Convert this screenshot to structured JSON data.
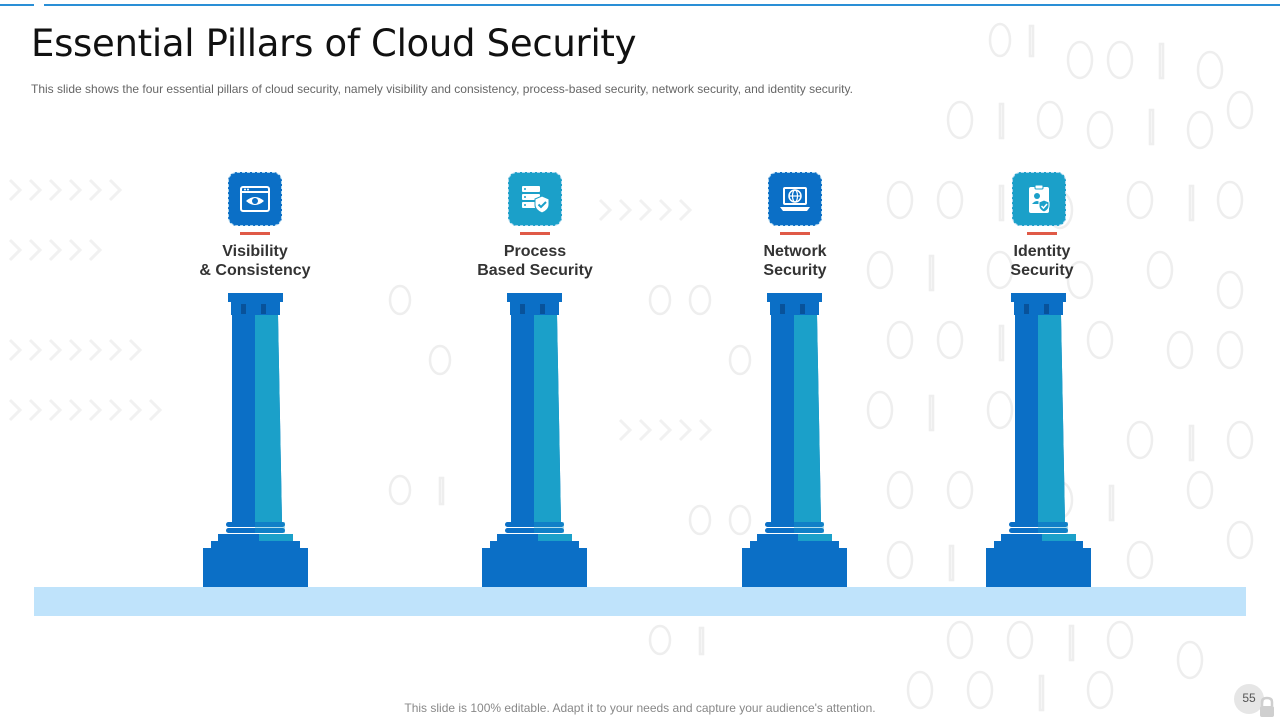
{
  "slide": {
    "title": "Essential Pillars of Cloud Security",
    "subtitle": "This slide shows the four  essential pillars of cloud security, namely visibility and consistency, process-based security, network security, and identity security.",
    "footer": "This slide is 100% editable. Adapt it to your needs and capture your audience's attention.",
    "page_number": "55"
  },
  "pillars": [
    {
      "line1": "Visibility",
      "line2": "& Consistency",
      "icon": "eye-browser-icon",
      "icon_color": "#0b6fc6"
    },
    {
      "line1": "Process",
      "line2": "Based Security",
      "icon": "server-shield-icon",
      "icon_color": "#1ba0c9"
    },
    {
      "line1": "Network",
      "line2": "Security",
      "icon": "globe-laptop-icon",
      "icon_color": "#0b6fc6"
    },
    {
      "line1": "Identity",
      "line2": "Security",
      "icon": "clipboard-user-shield-icon",
      "icon_color": "#1ba0c9"
    }
  ],
  "colors": {
    "pillar_dark": "#0b6fc6",
    "pillar_light": "#1ba0c9",
    "platform": "#bfe3fb",
    "accent_bar": "#e05a47",
    "top_line": "#2a8fd6"
  }
}
